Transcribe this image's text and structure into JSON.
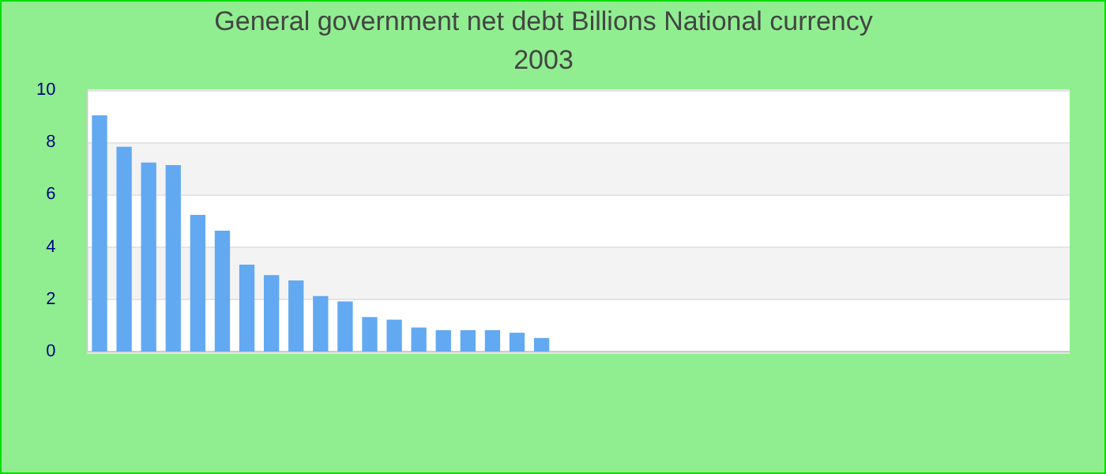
{
  "chart_data": {
    "type": "bar",
    "title": "General government net debt Billions National currency",
    "subtitle": "2003",
    "categories": [
      null,
      null,
      null,
      null,
      null,
      null,
      null,
      null,
      null,
      null,
      null,
      null,
      null,
      null,
      null,
      null,
      null,
      null,
      null,
      null,
      null,
      null,
      null,
      null,
      null,
      null,
      null,
      null,
      null,
      null,
      null,
      null,
      null,
      null,
      null,
      null,
      null,
      null,
      null,
      null
    ],
    "values": [
      9.0,
      7.8,
      7.2,
      7.1,
      5.2,
      4.6,
      3.3,
      2.9,
      2.7,
      2.1,
      1.9,
      1.3,
      1.2,
      0.9,
      0.8,
      0.8,
      0.8,
      0.7,
      0.5,
      null,
      null,
      null,
      null,
      null,
      null,
      null,
      null,
      null,
      null,
      null,
      null,
      null,
      null,
      null,
      null,
      null,
      null,
      null,
      null,
      null
    ],
    "color": "#62a9f2",
    "ylim": [
      0,
      10
    ],
    "yticks": [
      0,
      2,
      4,
      6,
      8,
      10
    ],
    "grid": "y"
  }
}
